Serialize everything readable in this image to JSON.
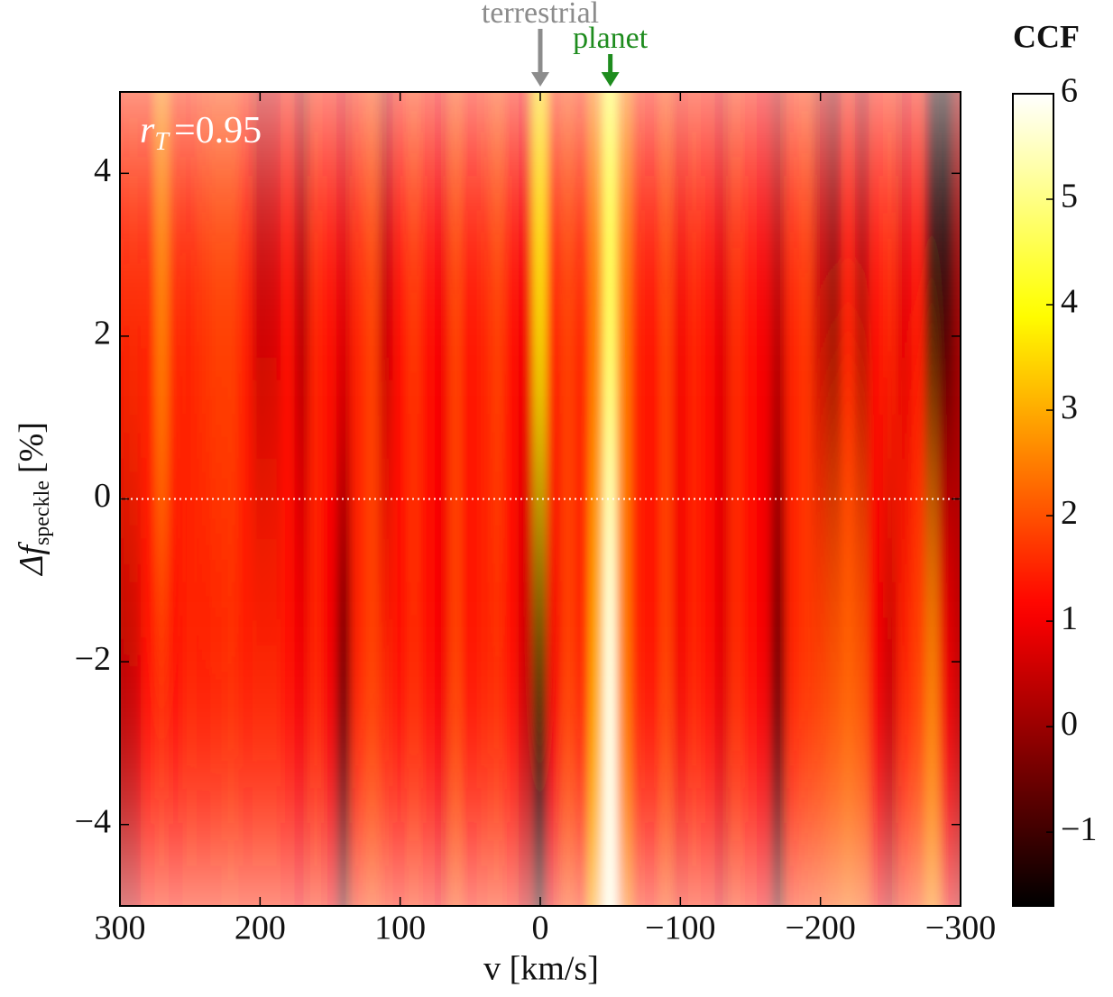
{
  "chart_data": {
    "type": "heatmap",
    "xlabel": "v [km/s]",
    "ylabel": {
      "main": "Δf",
      "sub": "speckle",
      "unit": "[%]"
    },
    "colorbar_label": "CCF",
    "colormap": "hot",
    "inset_label": {
      "main": "r",
      "sub": "T",
      "rest": "=0.95"
    },
    "hline": 0,
    "annotations": [
      {
        "text": "terrestrial",
        "x": 0,
        "color": "#8c8c8c"
      },
      {
        "text": "planet",
        "x": -50,
        "color": "#1e8c1e"
      }
    ],
    "x": [
      300,
      290,
      280,
      270,
      260,
      250,
      240,
      230,
      220,
      210,
      200,
      190,
      180,
      170,
      160,
      150,
      140,
      130,
      120,
      110,
      100,
      90,
      80,
      70,
      60,
      50,
      40,
      30,
      20,
      10,
      0,
      -10,
      -20,
      -30,
      -40,
      -50,
      -60,
      -70,
      -80,
      -90,
      -100,
      -110,
      -120,
      -130,
      -140,
      -150,
      -160,
      -170,
      -180,
      -190,
      -200,
      -210,
      -220,
      -230,
      -240,
      -250,
      -260,
      -270,
      -280,
      -290,
      -300
    ],
    "y": [
      2.5,
      -2.5
    ],
    "z": [
      [
        1.5,
        1.6,
        1.5,
        2.5,
        1.6,
        1.5,
        1.7,
        1.8,
        1.8,
        1.4,
        0.5,
        0.6,
        1.3,
        0.3,
        1.5,
        1.2,
        0.8,
        1.5,
        1.8,
        0.5,
        1.2,
        1.7,
        1.3,
        1.0,
        1.8,
        1.2,
        1.5,
        1.8,
        1.2,
        1.0,
        3.5,
        1.5,
        1.8,
        1.5,
        2.5,
        4.5,
        2.5,
        1.5,
        1.2,
        1.8,
        1.0,
        1.5,
        1.3,
        0.8,
        1.6,
        1.2,
        1.0,
        0.4,
        1.5,
        1.7,
        0.5,
        0.0,
        1.2,
        0.3,
        1.3,
        1.5,
        0.8,
        1.2,
        -1.2,
        -1.5,
        0.0
      ],
      [
        0.3,
        0.5,
        1.2,
        1.5,
        1.3,
        1.5,
        1.4,
        1.5,
        1.6,
        1.4,
        1.5,
        1.5,
        1.3,
        1.0,
        1.5,
        1.0,
        -0.5,
        1.5,
        1.8,
        1.5,
        1.2,
        1.6,
        1.3,
        1.0,
        1.8,
        1.2,
        1.5,
        1.6,
        1.2,
        0.5,
        -1.2,
        1.0,
        1.8,
        1.5,
        3.0,
        5.8,
        2.5,
        1.5,
        1.2,
        1.8,
        1.0,
        1.5,
        1.3,
        0.8,
        1.6,
        1.2,
        1.0,
        -0.5,
        1.5,
        1.7,
        1.8,
        2.0,
        2.2,
        2.0,
        1.0,
        0.5,
        1.5,
        1.8,
        2.5,
        1.0,
        0.5
      ]
    ],
    "xlim": [
      300,
      -300
    ],
    "ylim": [
      -5,
      5
    ],
    "zlim": [
      -1.7,
      6
    ],
    "xticks": [
      300,
      200,
      100,
      0,
      {
        "value": -100,
        "label": "−100"
      },
      {
        "value": -200,
        "label": "−200"
      },
      {
        "value": -300,
        "label": "−300"
      }
    ],
    "yticks": [
      {
        "value": -4,
        "label": "−4"
      },
      {
        "value": -2,
        "label": "−2"
      },
      0,
      2,
      4
    ],
    "zticks": [
      {
        "value": -1,
        "label": "−1"
      },
      0,
      1,
      2,
      3,
      4,
      5,
      6
    ]
  }
}
